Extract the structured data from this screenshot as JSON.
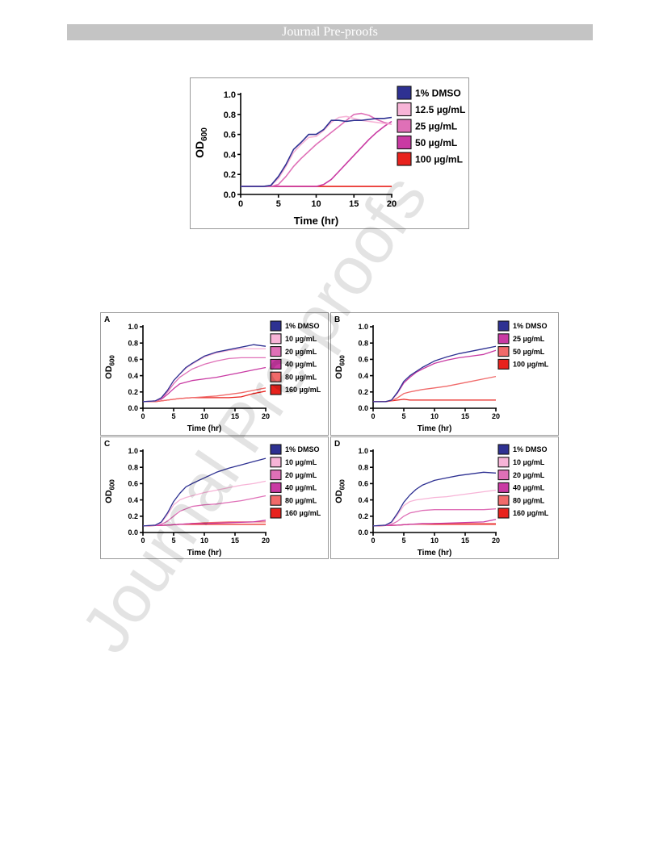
{
  "header": {
    "text": "Journal Pre-proofs"
  },
  "watermark": {
    "text": "Journal Pre-proofs"
  },
  "colors": {
    "dmso": "#2e3192",
    "c1": "#f7b4d7",
    "c2": "#df70b7",
    "c3": "#c93aa3",
    "c4": "#f06a6a",
    "c5": "#e8221d"
  },
  "chart_data": [
    {
      "id": "top",
      "type": "line",
      "panel": "",
      "xlabel": "Time (hr)",
      "ylabel": "OD",
      "ylabel_sub": "600",
      "xlim": [
        0,
        20
      ],
      "ylim": [
        0,
        1.0
      ],
      "xticks": [
        "0",
        "5",
        "10",
        "15",
        "20"
      ],
      "yticks": [
        "0.0",
        "0.2",
        "0.4",
        "0.6",
        "0.8",
        "1.0"
      ],
      "legend": "right",
      "series": [
        {
          "name": "1% DMSO",
          "color": "#2e3192",
          "x": [
            0,
            3,
            4,
            5,
            6,
            7,
            8,
            9,
            10,
            11,
            12,
            13,
            14,
            15,
            16,
            17,
            18,
            19,
            20
          ],
          "y": [
            0.08,
            0.08,
            0.09,
            0.18,
            0.3,
            0.45,
            0.52,
            0.6,
            0.6,
            0.65,
            0.74,
            0.74,
            0.73,
            0.74,
            0.74,
            0.75,
            0.76,
            0.76,
            0.77
          ]
        },
        {
          "name": "12.5 µg/mL",
          "color": "#f7b4d7",
          "x": [
            0,
            3,
            4,
            5,
            6,
            7,
            8,
            9,
            10,
            11,
            12,
            13,
            14,
            15,
            16,
            17,
            18,
            19,
            20
          ],
          "y": [
            0.08,
            0.08,
            0.09,
            0.16,
            0.28,
            0.42,
            0.5,
            0.57,
            0.58,
            0.64,
            0.72,
            0.77,
            0.78,
            0.76,
            0.74,
            0.73,
            0.72,
            0.71,
            0.7
          ]
        },
        {
          "name": "25 µg/mL",
          "color": "#df70b7",
          "x": [
            0,
            4,
            5,
            6,
            7,
            8,
            9,
            10,
            11,
            12,
            13,
            14,
            15,
            16,
            17,
            18,
            19,
            20
          ],
          "y": [
            0.08,
            0.08,
            0.1,
            0.18,
            0.28,
            0.36,
            0.43,
            0.5,
            0.56,
            0.62,
            0.68,
            0.74,
            0.8,
            0.81,
            0.79,
            0.75,
            0.72,
            0.7
          ]
        },
        {
          "name": "50 µg/mL",
          "color": "#c93aa3",
          "x": [
            0,
            10,
            11,
            12,
            13,
            14,
            15,
            16,
            17,
            18,
            19,
            20
          ],
          "y": [
            0.08,
            0.08,
            0.1,
            0.15,
            0.23,
            0.31,
            0.39,
            0.47,
            0.55,
            0.62,
            0.68,
            0.73
          ]
        },
        {
          "name": "100 µg/mL",
          "color": "#e8221d",
          "x": [
            0,
            20
          ],
          "y": [
            0.08,
            0.08
          ]
        }
      ]
    },
    {
      "id": "A",
      "type": "line",
      "panel": "A",
      "xlabel": "Time (hr)",
      "ylabel": "OD",
      "ylabel_sub": "600",
      "xlim": [
        0,
        20
      ],
      "ylim": [
        0,
        1.0
      ],
      "xticks": [
        "0",
        "5",
        "10",
        "15",
        "20"
      ],
      "yticks": [
        "0.0",
        "0.2",
        "0.4",
        "0.6",
        "0.8",
        "1.0"
      ],
      "legend": "right",
      "series": [
        {
          "name": "1% DMSO",
          "color": "#2e3192",
          "x": [
            0,
            2,
            3,
            4,
            5,
            6,
            7,
            8,
            10,
            12,
            14,
            16,
            18,
            20
          ],
          "y": [
            0.08,
            0.09,
            0.13,
            0.22,
            0.34,
            0.42,
            0.5,
            0.55,
            0.64,
            0.69,
            0.72,
            0.75,
            0.78,
            0.76
          ]
        },
        {
          "name": "10 µg/mL",
          "color": "#f7b4d7",
          "x": [
            0,
            2,
            3,
            4,
            5,
            6,
            7,
            8,
            10,
            12,
            14,
            16,
            18,
            20
          ],
          "y": [
            0.08,
            0.09,
            0.13,
            0.22,
            0.34,
            0.42,
            0.49,
            0.54,
            0.63,
            0.68,
            0.71,
            0.73,
            0.73,
            0.73
          ]
        },
        {
          "name": "20 µg/mL",
          "color": "#df70b7",
          "x": [
            0,
            2,
            3,
            4,
            5,
            6,
            8,
            10,
            12,
            14,
            16,
            18,
            20
          ],
          "y": [
            0.08,
            0.09,
            0.12,
            0.2,
            0.3,
            0.38,
            0.48,
            0.54,
            0.58,
            0.61,
            0.62,
            0.62,
            0.62
          ]
        },
        {
          "name": "40 µg/mL",
          "color": "#c93aa3",
          "x": [
            0,
            2,
            3,
            4,
            5,
            6,
            8,
            10,
            12,
            14,
            16,
            18,
            20
          ],
          "y": [
            0.08,
            0.09,
            0.11,
            0.17,
            0.24,
            0.3,
            0.34,
            0.36,
            0.38,
            0.41,
            0.44,
            0.47,
            0.5
          ]
        },
        {
          "name": "80 µg/mL",
          "color": "#f06a6a",
          "x": [
            0,
            2,
            4,
            6,
            8,
            10,
            12,
            14,
            16,
            18,
            20
          ],
          "y": [
            0.08,
            0.08,
            0.1,
            0.12,
            0.13,
            0.14,
            0.15,
            0.17,
            0.19,
            0.22,
            0.25
          ]
        },
        {
          "name": "160 µg/mL",
          "color": "#e8221d",
          "x": [
            0,
            2,
            4,
            6,
            8,
            10,
            12,
            14,
            16,
            18,
            20
          ],
          "y": [
            0.08,
            0.08,
            0.1,
            0.12,
            0.13,
            0.13,
            0.13,
            0.13,
            0.14,
            0.18,
            0.21
          ]
        }
      ]
    },
    {
      "id": "B",
      "type": "line",
      "panel": "B",
      "xlabel": "Time (hr)",
      "ylabel": "OD",
      "ylabel_sub": "600",
      "xlim": [
        0,
        20
      ],
      "ylim": [
        0,
        1.0
      ],
      "xticks": [
        "0",
        "5",
        "10",
        "15",
        "20"
      ],
      "yticks": [
        "0.0",
        "0.2",
        "0.4",
        "0.6",
        "0.8",
        "1.0"
      ],
      "legend": "right",
      "series": [
        {
          "name": "1% DMSO",
          "color": "#2e3192",
          "x": [
            0,
            2,
            3,
            4,
            5,
            6,
            7,
            8,
            10,
            12,
            14,
            16,
            18,
            20
          ],
          "y": [
            0.08,
            0.08,
            0.1,
            0.2,
            0.33,
            0.4,
            0.45,
            0.5,
            0.58,
            0.63,
            0.67,
            0.7,
            0.73,
            0.76
          ]
        },
        {
          "name": "25 µg/mL",
          "color": "#c93aa3",
          "x": [
            0,
            2,
            3,
            4,
            5,
            6,
            7,
            8,
            10,
            12,
            14,
            16,
            18,
            20
          ],
          "y": [
            0.08,
            0.08,
            0.1,
            0.19,
            0.31,
            0.38,
            0.44,
            0.48,
            0.55,
            0.59,
            0.62,
            0.64,
            0.66,
            0.71
          ]
        },
        {
          "name": "50 µg/mL",
          "color": "#f06a6a",
          "x": [
            0,
            2,
            3,
            4,
            5,
            6,
            8,
            10,
            12,
            14,
            16,
            18,
            20
          ],
          "y": [
            0.08,
            0.08,
            0.09,
            0.13,
            0.18,
            0.2,
            0.23,
            0.25,
            0.27,
            0.3,
            0.33,
            0.36,
            0.39
          ]
        },
        {
          "name": "100 µg/mL",
          "color": "#e8221d",
          "x": [
            0,
            2,
            3,
            4,
            5,
            6,
            8,
            10,
            14,
            20
          ],
          "y": [
            0.08,
            0.08,
            0.09,
            0.1,
            0.11,
            0.1,
            0.1,
            0.1,
            0.1,
            0.1
          ]
        }
      ]
    },
    {
      "id": "C",
      "type": "line",
      "panel": "C",
      "xlabel": "Time (hr)",
      "ylabel": "OD",
      "ylabel_sub": "600",
      "xlim": [
        0,
        20
      ],
      "ylim": [
        0,
        1.0
      ],
      "xticks": [
        "0",
        "5",
        "10",
        "15",
        "20"
      ],
      "yticks": [
        "0.0",
        "0.2",
        "0.4",
        "0.6",
        "0.8",
        "1.0"
      ],
      "legend": "right",
      "series": [
        {
          "name": "1% DMSO",
          "color": "#2e3192",
          "x": [
            0,
            2,
            3,
            4,
            5,
            6,
            7,
            8,
            10,
            12,
            14,
            16,
            18,
            20
          ],
          "y": [
            0.08,
            0.09,
            0.13,
            0.24,
            0.38,
            0.48,
            0.56,
            0.6,
            0.67,
            0.74,
            0.79,
            0.83,
            0.87,
            0.91
          ]
        },
        {
          "name": "10 µg/mL",
          "color": "#f7b4d7",
          "x": [
            0,
            2,
            3,
            4,
            5,
            6,
            7,
            8,
            10,
            12,
            14,
            16,
            18,
            20
          ],
          "y": [
            0.08,
            0.09,
            0.12,
            0.22,
            0.34,
            0.4,
            0.43,
            0.45,
            0.49,
            0.52,
            0.55,
            0.58,
            0.6,
            0.63
          ]
        },
        {
          "name": "20 µg/mL",
          "color": "#df70b7",
          "x": [
            0,
            2,
            3,
            4,
            5,
            6,
            8,
            10,
            12,
            14,
            16,
            18,
            20
          ],
          "y": [
            0.08,
            0.09,
            0.1,
            0.14,
            0.2,
            0.26,
            0.32,
            0.34,
            0.35,
            0.37,
            0.39,
            0.42,
            0.45
          ]
        },
        {
          "name": "40 µg/mL",
          "color": "#c93aa3",
          "x": [
            0,
            4,
            6,
            8,
            10,
            14,
            18,
            20
          ],
          "y": [
            0.08,
            0.09,
            0.1,
            0.11,
            0.11,
            0.12,
            0.13,
            0.15
          ]
        },
        {
          "name": "80 µg/mL",
          "color": "#f06a6a",
          "x": [
            0,
            4,
            6,
            8,
            10,
            14,
            18,
            20
          ],
          "y": [
            0.08,
            0.09,
            0.1,
            0.11,
            0.12,
            0.13,
            0.13,
            0.13
          ]
        },
        {
          "name": "160 µg/mL",
          "color": "#e8221d",
          "x": [
            0,
            4,
            6,
            8,
            10,
            14,
            20
          ],
          "y": [
            0.08,
            0.09,
            0.1,
            0.1,
            0.1,
            0.1,
            0.1
          ]
        }
      ]
    },
    {
      "id": "D",
      "type": "line",
      "panel": "D",
      "xlabel": "Time (hr)",
      "ylabel": "OD",
      "ylabel_sub": "600",
      "xlim": [
        0,
        20
      ],
      "ylim": [
        0,
        1.0
      ],
      "xticks": [
        "0",
        "5",
        "10",
        "15",
        "20"
      ],
      "yticks": [
        "0.0",
        "0.2",
        "0.4",
        "0.6",
        "0.8",
        "1.0"
      ],
      "legend": "right",
      "series": [
        {
          "name": "1% DMSO",
          "color": "#2e3192",
          "x": [
            0,
            2,
            3,
            4,
            5,
            6,
            7,
            8,
            10,
            12,
            14,
            16,
            18,
            20
          ],
          "y": [
            0.08,
            0.09,
            0.13,
            0.24,
            0.37,
            0.46,
            0.53,
            0.58,
            0.64,
            0.67,
            0.7,
            0.72,
            0.74,
            0.73
          ]
        },
        {
          "name": "10 µg/mL",
          "color": "#f7b4d7",
          "x": [
            0,
            2,
            3,
            4,
            5,
            6,
            7,
            8,
            10,
            12,
            14,
            16,
            18,
            20
          ],
          "y": [
            0.08,
            0.09,
            0.12,
            0.22,
            0.33,
            0.38,
            0.4,
            0.41,
            0.43,
            0.44,
            0.46,
            0.48,
            0.5,
            0.52
          ]
        },
        {
          "name": "20 µg/mL",
          "color": "#df70b7",
          "x": [
            0,
            2,
            3,
            4,
            5,
            6,
            8,
            10,
            12,
            14,
            16,
            18,
            20
          ],
          "y": [
            0.08,
            0.09,
            0.1,
            0.14,
            0.2,
            0.24,
            0.27,
            0.28,
            0.28,
            0.28,
            0.28,
            0.28,
            0.29
          ]
        },
        {
          "name": "40 µg/mL",
          "color": "#c93aa3",
          "x": [
            0,
            4,
            6,
            8,
            10,
            14,
            18,
            20
          ],
          "y": [
            0.08,
            0.09,
            0.1,
            0.11,
            0.11,
            0.12,
            0.13,
            0.16
          ]
        },
        {
          "name": "80 µg/mL",
          "color": "#f06a6a",
          "x": [
            0,
            4,
            6,
            8,
            10,
            14,
            18,
            20
          ],
          "y": [
            0.08,
            0.09,
            0.1,
            0.1,
            0.11,
            0.11,
            0.11,
            0.11
          ]
        },
        {
          "name": "160 µg/mL",
          "color": "#e8221d",
          "x": [
            0,
            4,
            6,
            8,
            10,
            14,
            20
          ],
          "y": [
            0.08,
            0.09,
            0.1,
            0.1,
            0.1,
            0.1,
            0.1
          ]
        }
      ]
    }
  ]
}
